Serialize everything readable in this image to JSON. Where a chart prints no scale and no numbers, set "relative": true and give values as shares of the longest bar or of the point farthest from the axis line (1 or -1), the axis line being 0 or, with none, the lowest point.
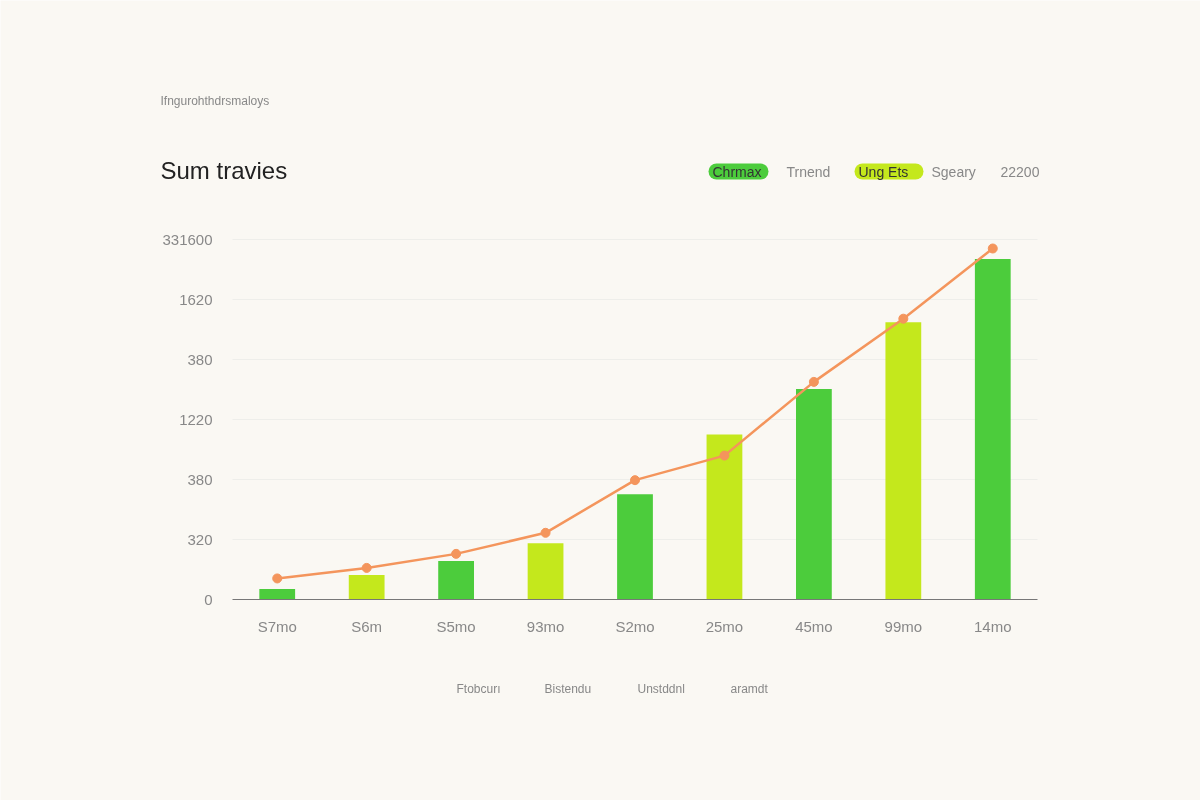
{
  "chart_data": {
    "type": "bar",
    "title": "Sum travies",
    "relative": true,
    "categories": [
      "S7mo",
      "S6m",
      "S5mo",
      "93mo",
      "S2mo",
      "25mo",
      "45mo",
      "99mo",
      "14mo"
    ],
    "series": [
      {
        "colors": [
          "#4ccc3c",
          "#c4e81c",
          "#4ccc3c",
          "#c4e81c",
          "#4ccc3c",
          "#c4e81c",
          "#4ccc3c",
          "#c4e81c",
          "#4ccc3c"
        ],
        "values": [
          0.03,
          0.07,
          0.11,
          0.16,
          0.3,
          0.47,
          0.6,
          0.79,
          0.97
        ]
      },
      {
        "type": "line",
        "color": "#f4955c",
        "values": [
          0.06,
          0.09,
          0.13,
          0.19,
          0.34,
          0.41,
          0.62,
          0.8,
          1
        ]
      }
    ],
    "grid": "y",
    "marker": "circle",
    "annotations": [
      "Ifngurohthdrsmaloys",
      "Chrmax",
      "Trnend",
      "Ung Ets",
      "Sgeary",
      "22200",
      "Ftobcurı",
      "Bistendu",
      "Unstddnl",
      "aramdt",
      "0",
      "320",
      "380",
      "1220",
      "380",
      "1620",
      "331600"
    ]
  }
}
